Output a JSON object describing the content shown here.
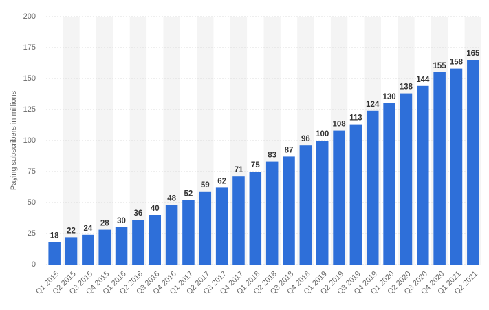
{
  "chart_data": {
    "type": "bar",
    "y_label": "Paying subscribers in millions",
    "categories": [
      "Q1 2015",
      "Q2 2015",
      "Q3 2015",
      "Q4 2015",
      "Q1 2016",
      "Q2 2016",
      "Q3 2016",
      "Q4 2016",
      "Q1 2017",
      "Q2 2017",
      "Q3 2017",
      "Q4 2017",
      "Q1 2018",
      "Q2 2018",
      "Q3 2018",
      "Q4 2018",
      "Q1 2019",
      "Q2 2019",
      "Q3 2019",
      "Q4 2019",
      "Q1 2020",
      "Q2 2020",
      "Q3 2020",
      "Q4 2020",
      "Q1 2021",
      "Q2 2021"
    ],
    "values": [
      18,
      22,
      24,
      28,
      30,
      36,
      40,
      48,
      52,
      59,
      62,
      71,
      75,
      83,
      87,
      96,
      100,
      108,
      113,
      124,
      130,
      138,
      144,
      155,
      158,
      165
    ],
    "color": "#2e6fd9",
    "ylim": [
      0,
      200
    ],
    "yticks": [
      0,
      25,
      50,
      75,
      100,
      125,
      150,
      175,
      200
    ],
    "grid": true
  }
}
